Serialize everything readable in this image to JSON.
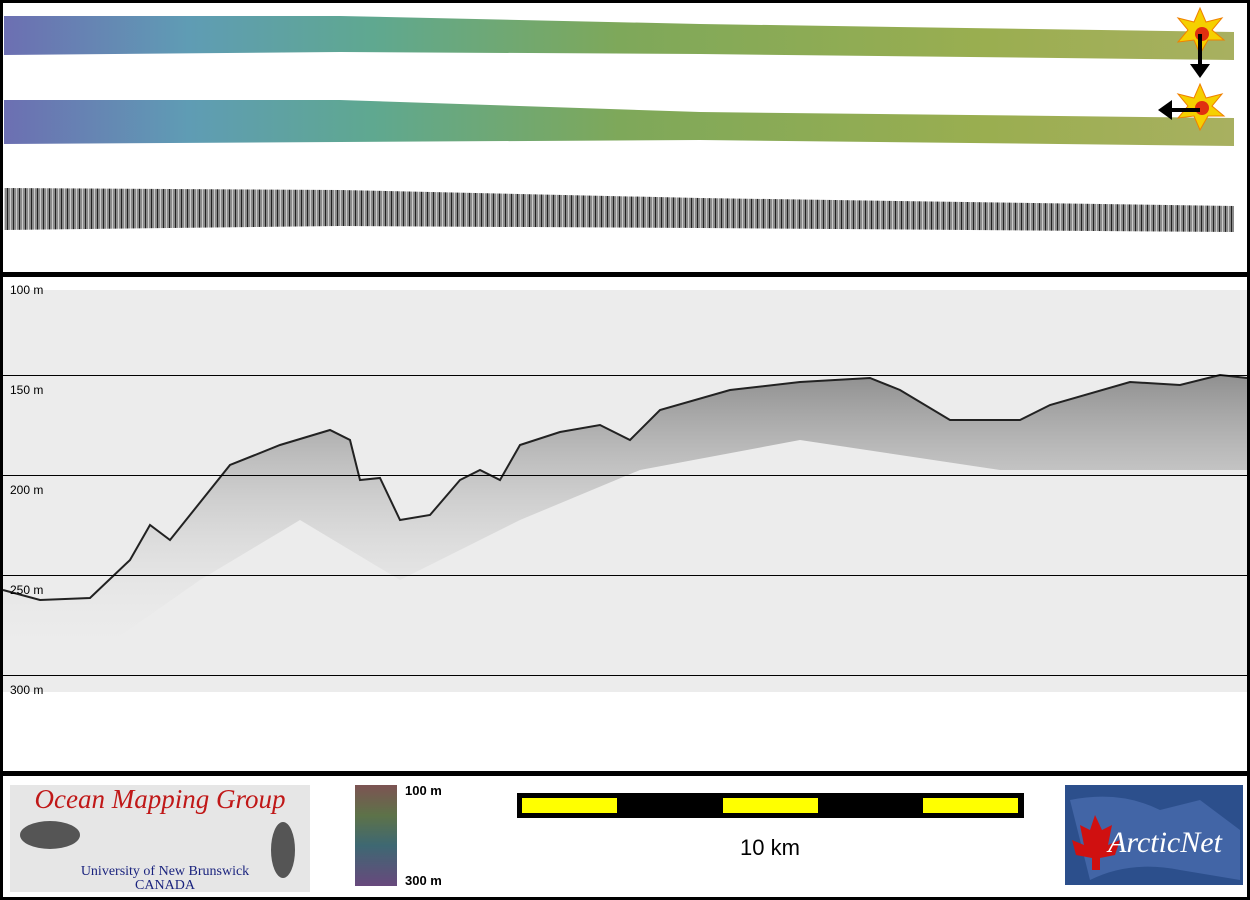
{
  "echogram": {
    "depth_labels": [
      "100 m",
      "150 m",
      "200 m",
      "250 m",
      "300 m"
    ]
  },
  "footer": {
    "logo_left": {
      "title": "Ocean Mapping Group",
      "subtitle": "University of New Brunswick",
      "country": "CANADA"
    },
    "color_bar": {
      "top_label": "100 m",
      "bottom_label": "300 m"
    },
    "scale_bar": {
      "label": "10 km"
    },
    "logo_right": {
      "text": "ArcticNet"
    }
  }
}
